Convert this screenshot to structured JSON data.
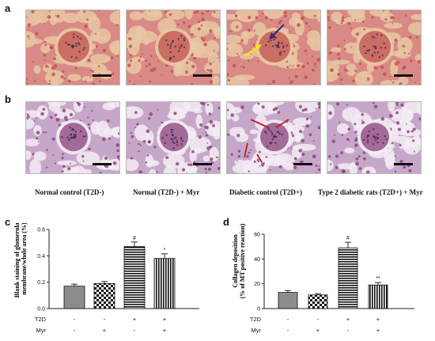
{
  "panel_labels": {
    "a": "a",
    "b": "b",
    "c": "c",
    "d": "d"
  },
  "captions": [
    "Normal control (T2D-)",
    "Normal  (T2D-) + Myr",
    "Diabetic control (T2D+)",
    "Type 2 diabetic rats  (T2D+) + Myr"
  ],
  "micrograph_colors": {
    "he_base": "#d98a86",
    "he_tissue": "#c2504e",
    "he_space": "#e8c7a2",
    "mt_base": "#c6a7c9",
    "mt_tissue": "#8a3f79",
    "mt_space": "#f3ecf3",
    "arrow_dark": "#3a2a6e",
    "arrow_yellow": "#f5e21a",
    "arrow_red": "#b52222"
  },
  "chart_data": [
    {
      "type": "bar",
      "panel": "c",
      "ylabel_line1": "Blank staining of glomerular",
      "ylabel_line2": "membrane/whole area (%)",
      "yticks": [
        "0.0",
        "0.2",
        "0.4",
        "0.6"
      ],
      "ylim": [
        0,
        0.6
      ],
      "values": [
        0.17,
        0.19,
        0.47,
        0.38
      ],
      "errors": [
        0.015,
        0.015,
        0.035,
        0.035
      ],
      "significance": [
        "",
        "",
        "#",
        "*"
      ],
      "patterns": [
        "gray",
        "checker",
        "hstripe",
        "vstripe"
      ],
      "group_rows": [
        {
          "label": "T2D",
          "marks": [
            "-",
            "-",
            "+",
            "+"
          ]
        },
        {
          "label": "Myr",
          "marks": [
            "-",
            "+",
            "-",
            "+"
          ]
        }
      ]
    },
    {
      "type": "bar",
      "panel": "d",
      "ylabel_line1": "Collagen deposition",
      "ylabel_line2": "(% of MT positive reaction)",
      "yticks": [
        "0",
        "20",
        "40",
        "60"
      ],
      "ylim": [
        0,
        60
      ],
      "values": [
        13,
        11,
        49,
        19
      ],
      "errors": [
        1.5,
        1.0,
        4.5,
        2.0
      ],
      "significance": [
        "",
        "",
        "#",
        "**"
      ],
      "patterns": [
        "gray",
        "checker",
        "hstripe",
        "vstripe"
      ],
      "group_rows": [
        {
          "label": "T2D",
          "marks": [
            "-",
            "-",
            "+",
            "+"
          ]
        },
        {
          "label": "Myr",
          "marks": [
            "-",
            "+",
            "-",
            "+"
          ]
        }
      ]
    }
  ]
}
